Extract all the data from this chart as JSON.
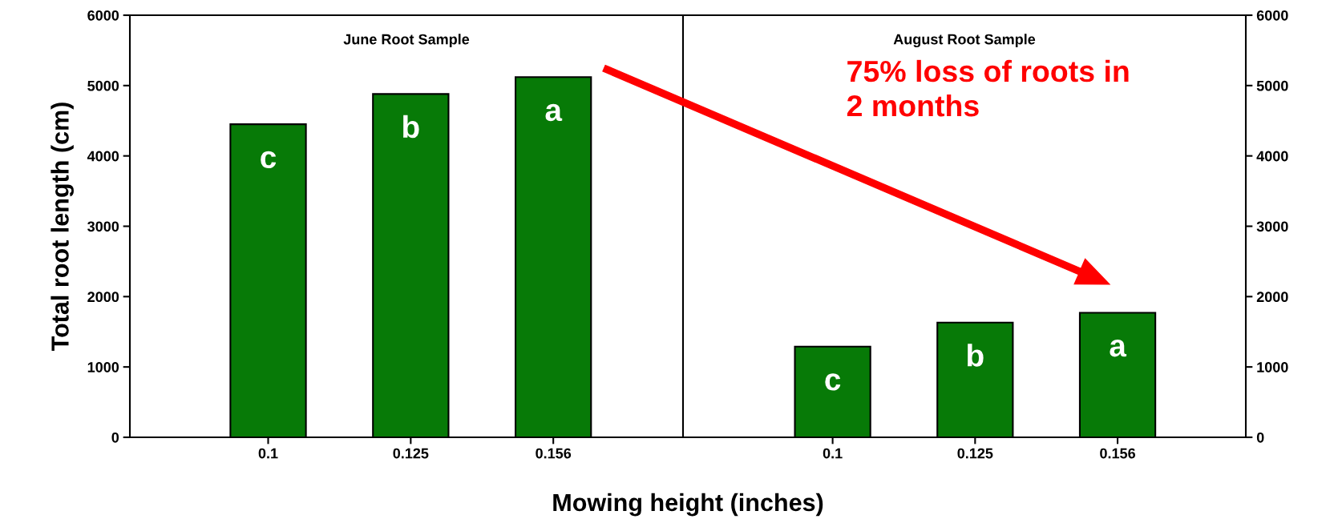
{
  "chart_data": [
    {
      "type": "bar",
      "title": "June Root Sample",
      "xlabel": "Mowing height (inches)",
      "ylabel": "Total root length (cm)",
      "categories": [
        "0.1",
        "0.125",
        "0.156"
      ],
      "series": [
        {
          "color": "#077a07",
          "values": [
            4450,
            4880,
            5120
          ]
        }
      ],
      "ylim": [
        0,
        6000
      ],
      "yticks": [
        0,
        1000,
        2000,
        3000,
        4000,
        5000,
        6000
      ],
      "annotations": [
        "c",
        "b",
        "a"
      ]
    },
    {
      "type": "bar",
      "title": "August Root Sample",
      "categories": [
        "0.1",
        "0.125",
        "0.156"
      ],
      "series": [
        {
          "color": "#077a07",
          "values": [
            1290,
            1630,
            1770
          ],
          "axis": "y2"
        }
      ],
      "y2lim": [
        0,
        6000
      ],
      "y2ticks": [
        0,
        1000,
        2000,
        3000,
        4000,
        5000,
        6000
      ],
      "annotations": [
        "c",
        "b",
        "a",
        "75% loss of roots in\n2 months"
      ]
    }
  ]
}
